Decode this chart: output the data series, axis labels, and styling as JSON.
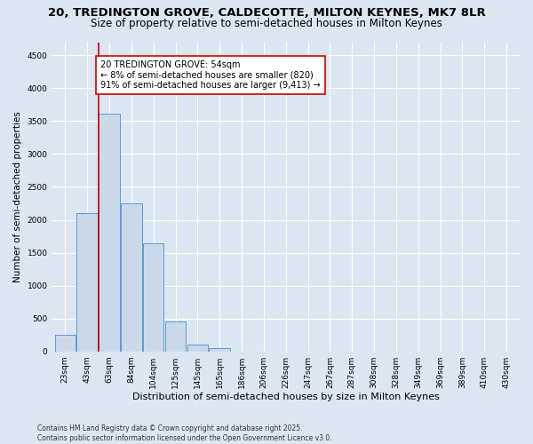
{
  "title_line1": "20, TREDINGTON GROVE, CALDECOTTE, MILTON KEYNES, MK7 8LR",
  "title_line2": "Size of property relative to semi-detached houses in Milton Keynes",
  "xlabel": "Distribution of semi-detached houses by size in Milton Keynes",
  "ylabel": "Number of semi-detached properties",
  "footnote": "Contains HM Land Registry data © Crown copyright and database right 2025.\nContains public sector information licensed under the Open Government Licence v3.0.",
  "categories": [
    "23sqm",
    "43sqm",
    "63sqm",
    "84sqm",
    "104sqm",
    "125sqm",
    "145sqm",
    "165sqm",
    "186sqm",
    "206sqm",
    "226sqm",
    "247sqm",
    "267sqm",
    "287sqm",
    "308sqm",
    "328sqm",
    "349sqm",
    "369sqm",
    "389sqm",
    "410sqm",
    "430sqm"
  ],
  "values": [
    250,
    2100,
    3620,
    2250,
    1640,
    450,
    100,
    50,
    0,
    0,
    0,
    0,
    0,
    0,
    0,
    0,
    0,
    0,
    0,
    0,
    0
  ],
  "bar_color": "#c9d9ea",
  "bar_edge_color": "#5b9bd5",
  "bg_color": "#dce6f1",
  "grid_color": "#ffffff",
  "vline_color": "#cc0000",
  "vline_x": 1.5,
  "ylim": [
    0,
    4700
  ],
  "yticks": [
    0,
    500,
    1000,
    1500,
    2000,
    2500,
    3000,
    3500,
    4000,
    4500
  ],
  "annotation_text": "20 TREDINGTON GROVE: 54sqm\n← 8% of semi-detached houses are smaller (820)\n91% of semi-detached houses are larger (9,413) →",
  "annotation_box_facecolor": "#ffffff",
  "annotation_box_edgecolor": "#cc0000",
  "title1_fontsize": 9.5,
  "title2_fontsize": 8.5,
  "xlabel_fontsize": 8,
  "ylabel_fontsize": 7.5,
  "tick_fontsize": 6.5,
  "annot_fontsize": 7,
  "footnote_fontsize": 5.5
}
